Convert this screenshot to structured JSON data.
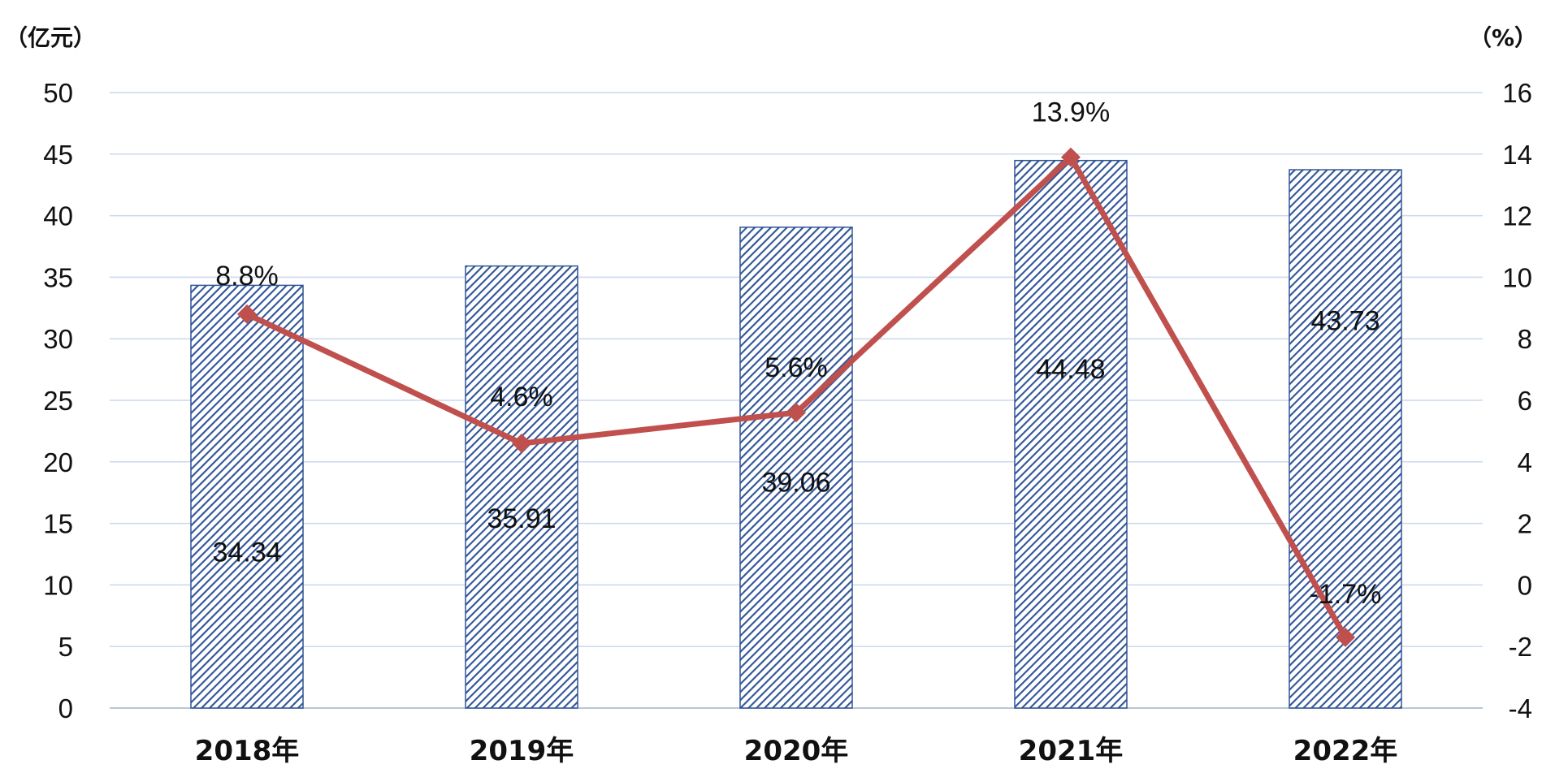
{
  "chart_data": {
    "type": "bar",
    "categories": [
      "2018年",
      "2019年",
      "2020年",
      "2021年",
      "2022年"
    ],
    "series": [
      {
        "type": "bar",
        "axis": "left",
        "values": [
          34.34,
          35.91,
          39.06,
          44.48,
          43.73
        ],
        "labels": [
          "34.34",
          "35.91",
          "39.06",
          "44.48",
          "43.73"
        ]
      },
      {
        "type": "line",
        "axis": "right",
        "values": [
          8.8,
          4.6,
          5.6,
          13.9,
          -1.7
        ],
        "labels": [
          "8.8%",
          "4.6%",
          "5.6%",
          "13.9%",
          "-1.7%"
        ]
      }
    ],
    "left_axis": {
      "unit": "（亿元）",
      "min": 0,
      "max": 50,
      "step": 5,
      "ticks": [
        "0",
        "5",
        "10",
        "15",
        "20",
        "25",
        "30",
        "35",
        "40",
        "45",
        "50"
      ]
    },
    "right_axis": {
      "unit": "（%）",
      "min": -4,
      "max": 16,
      "step": 2,
      "ticks": [
        "-4",
        "-2",
        "0",
        "2",
        "4",
        "6",
        "8",
        "10",
        "12",
        "14",
        "16"
      ]
    },
    "grid": true,
    "legend": "none",
    "colors": {
      "bar_fill": "#2f5597",
      "bar_stripe_bg": "#ffffff",
      "line": "#c0504d",
      "grid": "#c9d8ec"
    }
  }
}
